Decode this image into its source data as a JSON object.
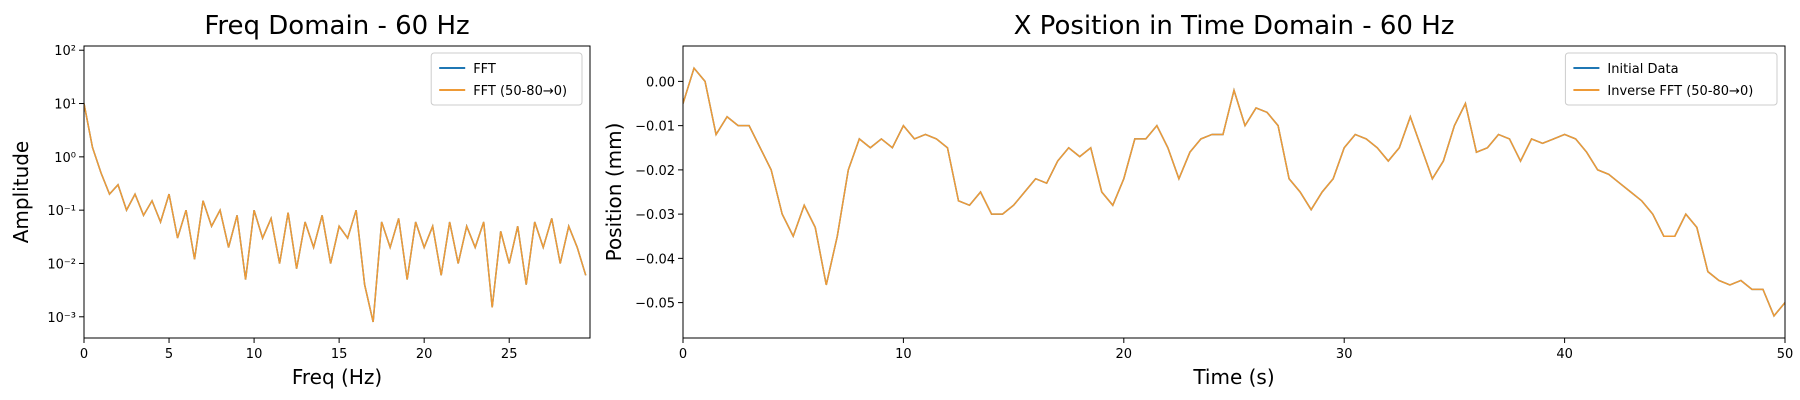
{
  "chart_data": [
    {
      "type": "line",
      "title": "Freq Domain - 60 Hz",
      "x_label": "Freq (Hz)",
      "y_label": "Amplitude",
      "y_scale": "log",
      "legend": "upper right",
      "xlim": [
        0,
        29.75
      ],
      "xticks": [
        0,
        5,
        10,
        15,
        20,
        25
      ],
      "ylim": [
        0.0004,
        120
      ],
      "yticks": [
        {
          "value": 0.001,
          "label": "10⁻³"
        },
        {
          "value": 0.01,
          "label": "10⁻²"
        },
        {
          "value": 0.1,
          "label": "10⁻¹"
        },
        {
          "value": 1,
          "label": "10⁰"
        },
        {
          "value": 10,
          "label": "10¹"
        },
        {
          "value": 100,
          "label": "10²"
        }
      ],
      "x": [
        0,
        0.5,
        1,
        1.5,
        2,
        2.5,
        3,
        3.5,
        4,
        4.5,
        5,
        5.5,
        6,
        6.5,
        7,
        7.5,
        8,
        8.5,
        9,
        9.5,
        10,
        10.5,
        11,
        11.5,
        12,
        12.5,
        13,
        13.5,
        14,
        14.5,
        15,
        15.5,
        16,
        16.5,
        17,
        17.5,
        18,
        18.5,
        19,
        19.5,
        20,
        20.5,
        21,
        21.5,
        22,
        22.5,
        23,
        23.5,
        24,
        24.5,
        25,
        25.5,
        26,
        26.5,
        27,
        27.5,
        28,
        28.5,
        29,
        29.5
      ],
      "series": [
        {
          "name": "FFT",
          "color": "#1f77b4",
          "values": [
            10,
            1.5,
            0.5,
            0.2,
            0.3,
            0.1,
            0.2,
            0.08,
            0.15,
            0.06,
            0.2,
            0.03,
            0.1,
            0.012,
            0.15,
            0.05,
            0.1,
            0.02,
            0.08,
            0.005,
            0.1,
            0.03,
            0.07,
            0.01,
            0.09,
            0.008,
            0.06,
            0.02,
            0.08,
            0.01,
            0.05,
            0.03,
            0.1,
            0.004,
            0.0008,
            0.06,
            0.02,
            0.07,
            0.005,
            0.06,
            0.02,
            0.05,
            0.006,
            0.06,
            0.01,
            0.05,
            0.02,
            0.06,
            0.0015,
            0.04,
            0.01,
            0.05,
            0.004,
            0.06,
            0.02,
            0.07,
            0.01,
            0.05,
            0.02,
            0.006
          ]
        },
        {
          "name": "FFT (50-80→0)",
          "color": "#ee9a36",
          "values": [
            10,
            1.5,
            0.5,
            0.2,
            0.3,
            0.1,
            0.2,
            0.08,
            0.15,
            0.06,
            0.2,
            0.03,
            0.1,
            0.012,
            0.15,
            0.05,
            0.1,
            0.02,
            0.08,
            0.005,
            0.1,
            0.03,
            0.07,
            0.01,
            0.09,
            0.008,
            0.06,
            0.02,
            0.08,
            0.01,
            0.05,
            0.03,
            0.1,
            0.004,
            0.0008,
            0.06,
            0.02,
            0.07,
            0.005,
            0.06,
            0.02,
            0.05,
            0.006,
            0.06,
            0.01,
            0.05,
            0.02,
            0.06,
            0.0015,
            0.04,
            0.01,
            0.05,
            0.004,
            0.06,
            0.02,
            0.07,
            0.01,
            0.05,
            0.02,
            0.006
          ]
        }
      ]
    },
    {
      "type": "line",
      "title": "X Position in Time Domain - 60 Hz",
      "x_label": "Time (s)",
      "y_label": "Position (mm)",
      "legend": "upper right",
      "xlim": [
        0,
        50
      ],
      "xticks": [
        0,
        10,
        20,
        30,
        40,
        50
      ],
      "ylim": [
        -0.058,
        0.008
      ],
      "yticks": [
        {
          "value": 0,
          "label": "0.00"
        },
        {
          "value": -0.01,
          "label": "−0.01"
        },
        {
          "value": -0.02,
          "label": "−0.02"
        },
        {
          "value": -0.03,
          "label": "−0.03"
        },
        {
          "value": -0.04,
          "label": "−0.04"
        },
        {
          "value": -0.05,
          "label": "−0.05"
        }
      ],
      "x": [
        0,
        0.5,
        1,
        1.5,
        2,
        2.5,
        3,
        3.5,
        4,
        4.5,
        5,
        5.5,
        6,
        6.5,
        7,
        7.5,
        8,
        8.5,
        9,
        9.5,
        10,
        10.5,
        11,
        11.5,
        12,
        12.5,
        13,
        13.5,
        14,
        14.5,
        15,
        15.5,
        16,
        16.5,
        17,
        17.5,
        18,
        18.5,
        19,
        19.5,
        20,
        20.5,
        21,
        21.5,
        22,
        22.5,
        23,
        23.5,
        24,
        24.5,
        25,
        25.5,
        26,
        26.5,
        27,
        27.5,
        28,
        28.5,
        29,
        29.5,
        30,
        30.5,
        31,
        31.5,
        32,
        32.5,
        33,
        33.5,
        34,
        34.5,
        35,
        35.5,
        36,
        36.5,
        37,
        37.5,
        38,
        38.5,
        39,
        39.5,
        40,
        40.5,
        41,
        41.5,
        42,
        42.5,
        43,
        43.5,
        44,
        44.5,
        45,
        45.5,
        46,
        46.5,
        47,
        47.5,
        48,
        48.5,
        49,
        49.5,
        50
      ],
      "series": [
        {
          "name": "Initial Data",
          "color": "#1f77b4",
          "values": [
            -0.005,
            0.003,
            0.0,
            -0.012,
            -0.008,
            -0.01,
            -0.01,
            -0.015,
            -0.02,
            -0.03,
            -0.035,
            -0.028,
            -0.033,
            -0.046,
            -0.035,
            -0.02,
            -0.013,
            -0.015,
            -0.013,
            -0.015,
            -0.01,
            -0.013,
            -0.012,
            -0.013,
            -0.015,
            -0.027,
            -0.028,
            -0.025,
            -0.03,
            -0.03,
            -0.028,
            -0.025,
            -0.022,
            -0.023,
            -0.018,
            -0.015,
            -0.017,
            -0.015,
            -0.025,
            -0.028,
            -0.022,
            -0.013,
            -0.013,
            -0.01,
            -0.015,
            -0.022,
            -0.016,
            -0.013,
            -0.012,
            -0.012,
            -0.002,
            -0.01,
            -0.006,
            -0.007,
            -0.01,
            -0.022,
            -0.025,
            -0.029,
            -0.025,
            -0.022,
            -0.015,
            -0.012,
            -0.013,
            -0.015,
            -0.018,
            -0.015,
            -0.008,
            -0.015,
            -0.022,
            -0.018,
            -0.01,
            -0.005,
            -0.016,
            -0.015,
            -0.012,
            -0.013,
            -0.018,
            -0.013,
            -0.014,
            -0.013,
            -0.012,
            -0.013,
            -0.016,
            -0.02,
            -0.021,
            -0.023,
            -0.025,
            -0.027,
            -0.03,
            -0.035,
            -0.035,
            -0.03,
            -0.033,
            -0.043,
            -0.045,
            -0.046,
            -0.045,
            -0.047,
            -0.047,
            -0.053,
            -0.05
          ]
        },
        {
          "name": "Inverse FFT (50-80→0)",
          "color": "#ee9a36",
          "values": [
            -0.005,
            0.003,
            0.0,
            -0.012,
            -0.008,
            -0.01,
            -0.01,
            -0.015,
            -0.02,
            -0.03,
            -0.035,
            -0.028,
            -0.033,
            -0.046,
            -0.035,
            -0.02,
            -0.013,
            -0.015,
            -0.013,
            -0.015,
            -0.01,
            -0.013,
            -0.012,
            -0.013,
            -0.015,
            -0.027,
            -0.028,
            -0.025,
            -0.03,
            -0.03,
            -0.028,
            -0.025,
            -0.022,
            -0.023,
            -0.018,
            -0.015,
            -0.017,
            -0.015,
            -0.025,
            -0.028,
            -0.022,
            -0.013,
            -0.013,
            -0.01,
            -0.015,
            -0.022,
            -0.016,
            -0.013,
            -0.012,
            -0.012,
            -0.002,
            -0.01,
            -0.006,
            -0.007,
            -0.01,
            -0.022,
            -0.025,
            -0.029,
            -0.025,
            -0.022,
            -0.015,
            -0.012,
            -0.013,
            -0.015,
            -0.018,
            -0.015,
            -0.008,
            -0.015,
            -0.022,
            -0.018,
            -0.01,
            -0.005,
            -0.016,
            -0.015,
            -0.012,
            -0.013,
            -0.018,
            -0.013,
            -0.014,
            -0.013,
            -0.012,
            -0.013,
            -0.016,
            -0.02,
            -0.021,
            -0.023,
            -0.025,
            -0.027,
            -0.03,
            -0.035,
            -0.035,
            -0.03,
            -0.033,
            -0.043,
            -0.045,
            -0.046,
            -0.045,
            -0.047,
            -0.047,
            -0.053,
            -0.05
          ]
        }
      ]
    }
  ]
}
